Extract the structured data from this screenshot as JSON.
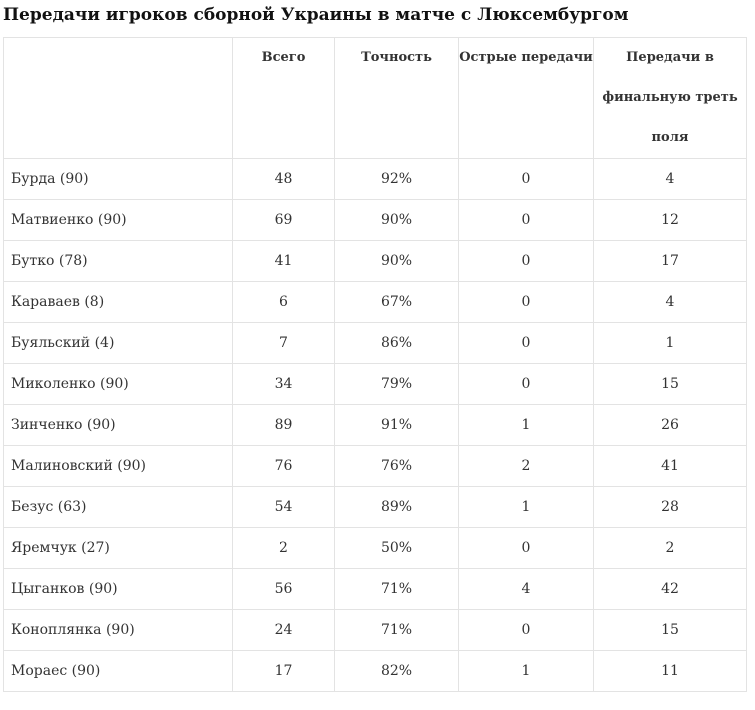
{
  "title": "Передачи игроков сборной Украины в матче с Люксембургом",
  "table": {
    "headers": [
      "",
      "Всего",
      "Точность",
      "Острые передачи",
      "Передачи в финальную треть поля"
    ],
    "rows": [
      [
        "Бурда (90)",
        "48",
        "92%",
        "0",
        "4"
      ],
      [
        "Матвиенко (90)",
        "69",
        "90%",
        "0",
        "12"
      ],
      [
        "Бутко (78)",
        "41",
        "90%",
        "0",
        "17"
      ],
      [
        "Караваев (8)",
        "6",
        "67%",
        "0",
        "4"
      ],
      [
        "Буяльский (4)",
        "7",
        "86%",
        "0",
        "1"
      ],
      [
        "Миколенко (90)",
        "34",
        "79%",
        "0",
        "15"
      ],
      [
        "Зинченко (90)",
        "89",
        "91%",
        "1",
        "26"
      ],
      [
        "Малиновский (90)",
        "76",
        "76%",
        "2",
        "41"
      ],
      [
        "Безус (63)",
        "54",
        "89%",
        "1",
        "28"
      ],
      [
        "Яремчук (27)",
        "2",
        "50%",
        "0",
        "2"
      ],
      [
        "Цыганков (90)",
        "56",
        "71%",
        "4",
        "42"
      ],
      [
        "Коноплянка (90)",
        "24",
        "71%",
        "0",
        "15"
      ],
      [
        "Мораес (90)",
        "17",
        "82%",
        "1",
        "11"
      ]
    ]
  }
}
